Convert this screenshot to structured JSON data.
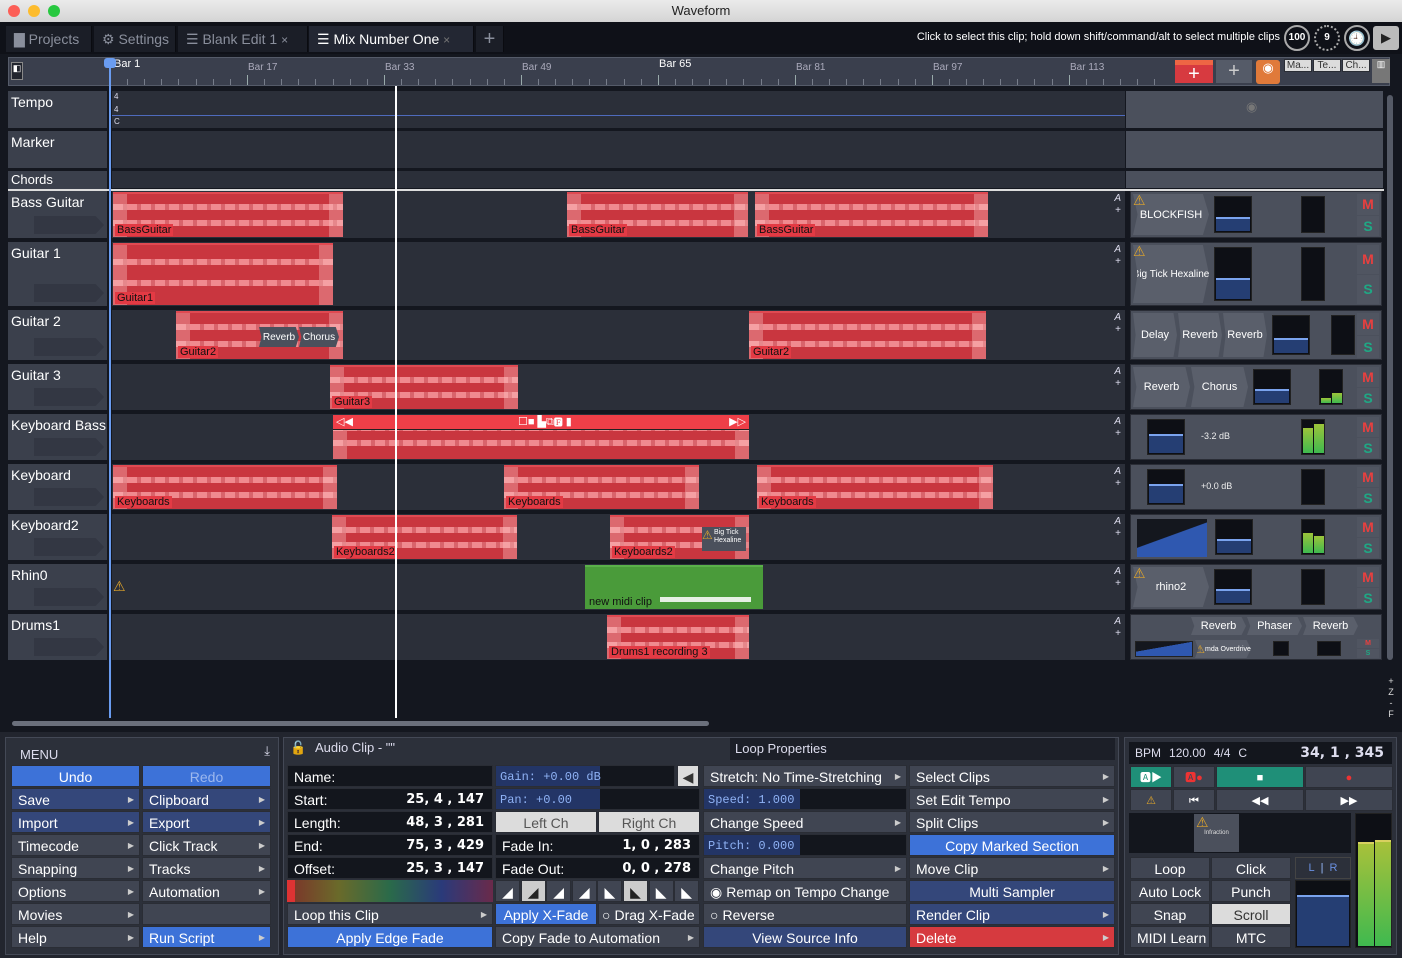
{
  "window": {
    "title": "Waveform"
  },
  "tabs": [
    {
      "label": "Projects",
      "icon": "folder-icon"
    },
    {
      "label": "Settings",
      "icon": "gear-icon"
    },
    {
      "label": "Blank Edit 1",
      "icon": "edit-icon",
      "closable": true
    },
    {
      "label": "Mix Number One",
      "icon": "edit-icon",
      "closable": true,
      "active": true
    }
  ],
  "tab_add": "+",
  "tab_close": "×",
  "status": {
    "hint": "Click to select this clip; hold down shift/command/alt to select multiple clips",
    "cpu": "100",
    "dial2": "9"
  },
  "ruler": {
    "bars": [
      "Bar 1",
      "Bar 17",
      "Bar 33",
      "Bar 49",
      "Bar 65",
      "Bar 81",
      "Bar 97",
      "Bar 113"
    ],
    "add_track": "+",
    "add": "+",
    "tabs": [
      "Ma...",
      "Te...",
      "Ch..."
    ]
  },
  "tempo_track": {
    "label": "Tempo",
    "sig_top": "4",
    "sig_bottom": "4",
    "key": "C"
  },
  "marker_track": {
    "label": "Marker"
  },
  "chords_track": {
    "label": "Chords"
  },
  "tracks": [
    {
      "name": "Bass Guitar",
      "clips": [
        {
          "label": "BassGuitar"
        },
        {
          "label": "BassGuitar"
        },
        {
          "label": "BassGuitar"
        }
      ],
      "mixer": {
        "warning": true,
        "plugins": [
          "BLOCKFISH"
        ],
        "mute": "M",
        "solo": "S"
      }
    },
    {
      "name": "Guitar 1",
      "clips": [
        {
          "label": "Guitar1"
        }
      ],
      "mixer": {
        "warning": true,
        "plugins": [
          "Big Tick Hexaline"
        ],
        "mute": "M",
        "solo": "S"
      }
    },
    {
      "name": "Guitar 2",
      "clips": [
        {
          "label": "Guitar2",
          "plugins": [
            "Reverb",
            "Chorus"
          ]
        },
        {
          "label": "Guitar2"
        }
      ],
      "mixer": {
        "plugins": [
          "Delay",
          "Reverb",
          "Reverb"
        ],
        "mute": "M",
        "solo": "S"
      }
    },
    {
      "name": "Guitar 3",
      "clips": [
        {
          "label": "Guitar3"
        }
      ],
      "mixer": {
        "plugins": [
          "Reverb",
          "Chorus"
        ],
        "mute": "M",
        "solo": "S",
        "meter": [
          0.15,
          0.3
        ]
      }
    },
    {
      "name": "Keyboard Bass",
      "clips": [
        {
          "label": "",
          "selected": true
        }
      ],
      "mixer": {
        "volume": "-3.2 dB",
        "mute": "M",
        "solo": "S",
        "meter": [
          0.75,
          0.85
        ]
      }
    },
    {
      "name": "Keyboard",
      "clips": [
        {
          "label": "Keyboards"
        },
        {
          "label": "Keyboards"
        },
        {
          "label": "Keyboards"
        }
      ],
      "mixer": {
        "volume": "+0.0 dB",
        "mute": "M",
        "solo": "S"
      }
    },
    {
      "name": "Keyboard2",
      "clips": [
        {
          "label": "Keyboards2"
        },
        {
          "label": "Keyboards2",
          "warning": true,
          "plugins": [
            "Big Tick Hexaline"
          ]
        }
      ],
      "mixer": {
        "eq": true,
        "mute": "M",
        "solo": "S",
        "meter": [
          0.6,
          0.5
        ]
      }
    },
    {
      "name": "Rhin0",
      "track_warning": true,
      "clips": [
        {
          "label": "new midi clip",
          "midi": true
        }
      ],
      "mixer": {
        "warning": true,
        "plugins": [
          "rhino2"
        ],
        "mute": "M",
        "solo": "S"
      }
    },
    {
      "name": "Drums1",
      "clips": [
        {
          "label": "Drums1 recording 3"
        }
      ],
      "mixer": {
        "plugins": [
          "Reverb",
          "Phaser",
          "Reverb"
        ],
        "sub_plugins": [
          "mda Overdrive"
        ],
        "warning": true,
        "mute": "M",
        "solo": "S"
      }
    }
  ],
  "track_auto": "A",
  "track_add": "+",
  "zoom_controls": [
    "+",
    "Z",
    "-",
    "F"
  ],
  "menu": {
    "title": "MENU",
    "items": [
      {
        "label": "Undo",
        "style": "blue"
      },
      {
        "label": "Redo",
        "style": "blue-dim"
      },
      {
        "label": "Save",
        "sub": true
      },
      {
        "label": "Clipboard",
        "sub": true
      },
      {
        "label": "Import",
        "sub": true
      },
      {
        "label": "Export",
        "sub": true
      },
      {
        "label": "Timecode",
        "sub": true
      },
      {
        "label": "Click Track",
        "sub": true
      },
      {
        "label": "Snapping",
        "sub": true
      },
      {
        "label": "Tracks",
        "sub": true
      },
      {
        "label": "Options",
        "sub": true
      },
      {
        "label": "Automation",
        "sub": true
      },
      {
        "label": "Movies",
        "sub": true
      },
      {
        "label": ""
      },
      {
        "label": "Help",
        "sub": true
      },
      {
        "label": "Run Script",
        "sub": true,
        "style": "blue"
      }
    ]
  },
  "clip_panel": {
    "title": "Audio Clip - \"\"",
    "tab2": "Loop Properties",
    "name_label": "Name:",
    "name_value": "",
    "start_label": "Start:",
    "start": "25, 4 , 147",
    "length_label": "Length:",
    "length": "48, 3 , 281",
    "end_label": "End:",
    "end": "75, 3 , 429",
    "offset_label": "Offset:",
    "offset": "25, 3 , 147",
    "gain": "Gain: +0.00 dB",
    "pan": "Pan: +0.00",
    "left_ch": "Left Ch",
    "right_ch": "Right Ch",
    "fade_in_label": "Fade In:",
    "fade_in": "1, 0 , 283",
    "fade_out_label": "Fade Out:",
    "fade_out": "0, 0 , 278",
    "loop_clip": "Loop this Clip",
    "apply_xfade": "Apply X-Fade",
    "drag_xfade": "Drag X-Fade",
    "apply_edge_fade": "Apply Edge Fade",
    "copy_fade": "Copy Fade to Automation",
    "stretch": "Stretch: No Time-Stretching",
    "speed": "Speed: 1.000",
    "change_speed": "Change Speed",
    "pitch": "Pitch: 0.000",
    "change_pitch": "Change Pitch",
    "remap": "Remap on Tempo Change",
    "reverse": "Reverse",
    "view_source": "View Source Info",
    "select_clips": "Select Clips",
    "set_edit_tempo": "Set Edit Tempo",
    "split_clips": "Split Clips",
    "copy_marked": "Copy Marked Section",
    "move_clip": "Move Clip",
    "multi_sampler": "Multi Sampler",
    "render_clip": "Render Clip",
    "delete": "Delete"
  },
  "transport": {
    "bpm_label": "BPM",
    "bpm": "120.00",
    "time_sig": "4/4",
    "key": "C",
    "position": "34, 1 , 345",
    "buttons": [
      "Loop",
      "Click",
      "Auto Lock",
      "Punch",
      "Snap",
      "Scroll",
      "MIDI Learn",
      "MTC"
    ],
    "active_button": "Scroll",
    "meter_l": "L",
    "meter_r": "R",
    "master_meter": [
      0.78,
      0.8
    ],
    "plugin": "Infraction"
  },
  "colors": {
    "clip": "#c9363f",
    "midi_clip": "#4a9b3a",
    "accent": "#3d72d8",
    "delete": "#d63a3f",
    "mute": "#e8403f",
    "solo": "#1fa884"
  }
}
